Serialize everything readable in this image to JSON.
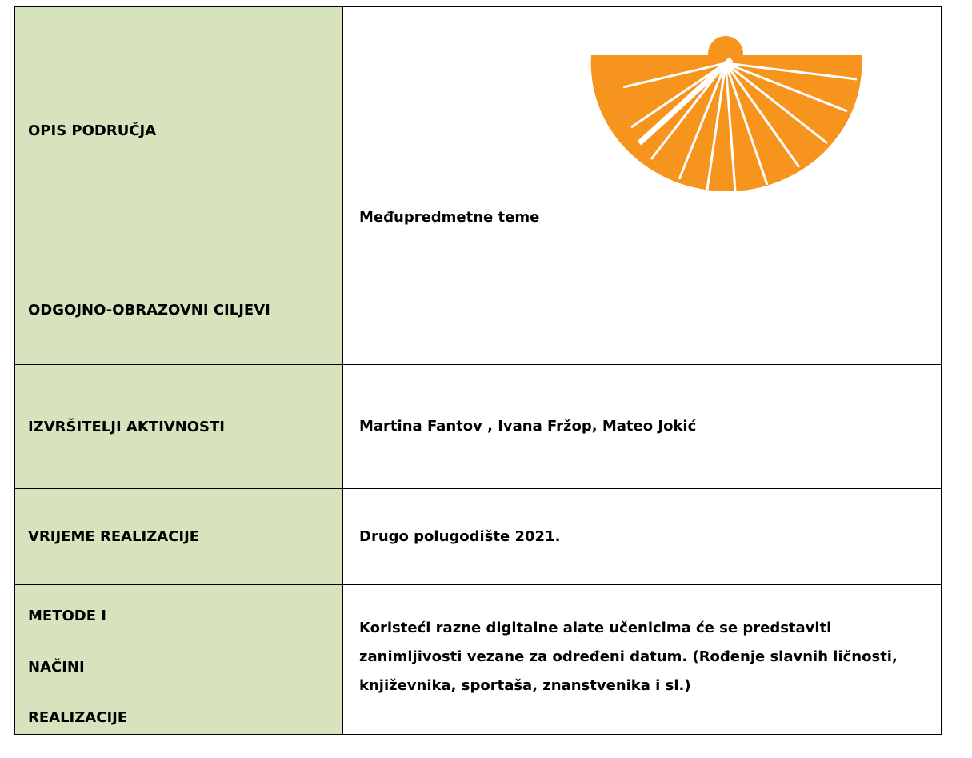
{
  "table": {
    "rows": [
      {
        "label": "OPIS PODRUČJA",
        "value": "Međupredmetne teme"
      },
      {
        "label": "ODGOJNO-OBRAZOVNI CILJEVI"
      },
      {
        "label": "IZVRŠITELJI AKTIVNOSTI",
        "value": "Martina Fantov , Ivana Fržop, Mateo Jokić"
      },
      {
        "label": "VRIJEME REALIZACIJE",
        "value": "Drugo polugodište 2021."
      },
      {
        "label": [
          "METODE I",
          "NAČINI",
          "REALIZACIJE"
        ],
        "value": "Koristeći razne digitalne alate učenicima će se predstaviti zanimljivosti vezane za određeni datum. (Rođenje slavnih ličnosti, književnika, sportaša, znanstvenika i sl.)"
      }
    ]
  }
}
